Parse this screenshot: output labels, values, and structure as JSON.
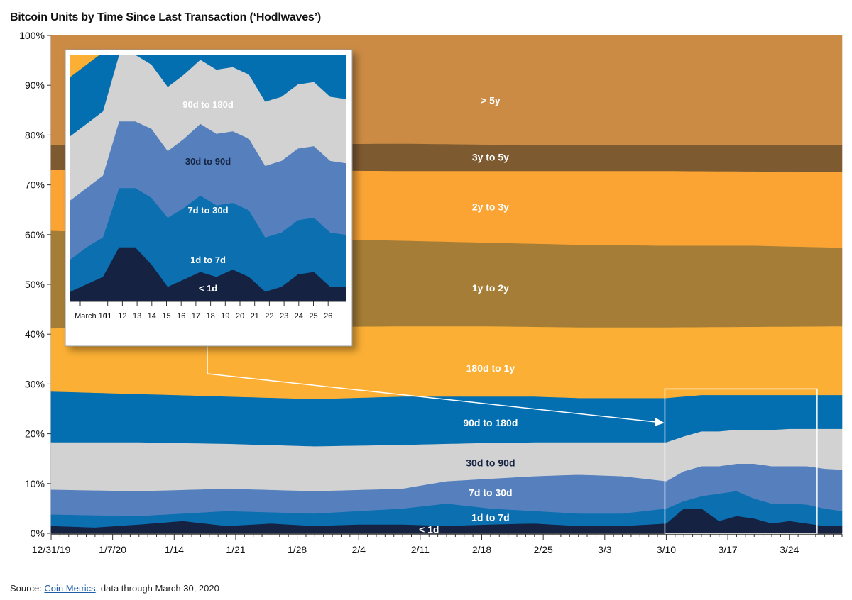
{
  "title": "Bitcoin Units by Time Since Last Transaction (‘Hodlwaves’)",
  "source": {
    "prefix": "Source: ",
    "link_text": "Coin Metrics",
    "suffix": ", data through March 30, 2020"
  },
  "chart_data": [
    {
      "type": "area",
      "stacked": true,
      "title": "Bitcoin Units by Time Since Last Transaction (‘Hodlwaves’)",
      "ylim": [
        0,
        100
      ],
      "y_ticks": [
        "0%",
        "10%",
        "20%",
        "30%",
        "40%",
        "50%",
        "60%",
        "70%",
        "80%",
        "90%",
        "100%"
      ],
      "x_ticks": [
        "12/31/19",
        "1/7/20",
        "1/14",
        "1/21",
        "1/28",
        "2/4",
        "2/11",
        "2/18",
        "2/25",
        "3/3",
        "3/10",
        "3/17",
        "3/24"
      ],
      "x_days": 91,
      "boundaries": [
        {
          "upper_of": "< 1d",
          "x": [
            0,
            5,
            10,
            15,
            20,
            25,
            30,
            35,
            40,
            45,
            50,
            55,
            60,
            65,
            70,
            72,
            74,
            76,
            78,
            80,
            82,
            84,
            86,
            88,
            90
          ],
          "y": [
            1.5,
            1.2,
            1.8,
            2.5,
            1.5,
            2.0,
            1.5,
            1.8,
            1.8,
            1.5,
            1.8,
            2.0,
            1.5,
            1.5,
            2.0,
            5.0,
            5.0,
            2.5,
            3.5,
            3.0,
            2.0,
            2.5,
            2.0,
            1.5,
            1.5
          ]
        },
        {
          "upper_of": "1d to 7d",
          "x": [
            0,
            10,
            20,
            30,
            40,
            45,
            50,
            55,
            60,
            65,
            70,
            72,
            74,
            76,
            78,
            80,
            82,
            84,
            86,
            88,
            90
          ],
          "y": [
            3.8,
            3.5,
            4.5,
            4.0,
            5.0,
            6.0,
            5.0,
            4.5,
            4.0,
            4.0,
            5.0,
            6.5,
            7.5,
            8.0,
            8.5,
            7.0,
            6.0,
            6.0,
            5.8,
            5.0,
            4.5
          ]
        },
        {
          "upper_of": "7d to 30d",
          "x": [
            0,
            10,
            20,
            30,
            40,
            45,
            50,
            55,
            60,
            65,
            70,
            72,
            74,
            76,
            78,
            80,
            82,
            84,
            86,
            88,
            90
          ],
          "y": [
            8.8,
            8.5,
            9.0,
            8.5,
            9.0,
            10.5,
            11.0,
            11.5,
            11.8,
            11.5,
            10.5,
            12.5,
            13.5,
            13.5,
            14.0,
            14.0,
            13.5,
            13.5,
            13.5,
            13.0,
            12.8
          ]
        },
        {
          "upper_of": "30d to 90d",
          "x": [
            0,
            10,
            20,
            30,
            40,
            45,
            50,
            55,
            60,
            65,
            70,
            72,
            74,
            76,
            78,
            80,
            82,
            84,
            86,
            88,
            90
          ],
          "y": [
            18.3,
            18.3,
            18.0,
            17.5,
            17.8,
            18.0,
            18.2,
            18.3,
            18.3,
            18.3,
            18.3,
            19.5,
            20.5,
            20.5,
            20.8,
            20.8,
            20.8,
            21.0,
            21.0,
            21.0,
            21.0
          ]
        },
        {
          "upper_of": "90d to 180d",
          "x": [
            0,
            10,
            20,
            30,
            40,
            45,
            50,
            55,
            60,
            65,
            70,
            72,
            74,
            76,
            78,
            80,
            82,
            84,
            86,
            88,
            90
          ],
          "y": [
            28.5,
            28.0,
            27.5,
            27.0,
            27.5,
            27.5,
            27.5,
            27.5,
            27.2,
            27.2,
            27.2,
            27.5,
            27.8,
            27.8,
            27.8,
            27.8,
            27.8,
            27.8,
            27.8,
            27.8,
            27.8
          ]
        },
        {
          "upper_of": "180d to 1y",
          "x": [
            0,
            10,
            20,
            30,
            40,
            50,
            60,
            70,
            80,
            90
          ],
          "y": [
            41.2,
            41.3,
            41.4,
            41.5,
            41.6,
            41.6,
            41.4,
            41.4,
            41.5,
            41.6
          ]
        },
        {
          "upper_of": "1y to 2y",
          "x": [
            0,
            10,
            20,
            30,
            40,
            50,
            60,
            70,
            80,
            90
          ],
          "y": [
            60.8,
            60.2,
            59.8,
            59.2,
            58.8,
            58.4,
            58.0,
            57.8,
            57.8,
            57.4
          ]
        },
        {
          "upper_of": "2y to 3y",
          "x": [
            0,
            10,
            20,
            30,
            40,
            50,
            60,
            70,
            80,
            90
          ],
          "y": [
            73.0,
            73.0,
            72.9,
            72.9,
            72.8,
            72.8,
            72.8,
            72.8,
            72.7,
            72.6
          ]
        },
        {
          "upper_of": "3y to 5y",
          "x": [
            0,
            10,
            20,
            30,
            40,
            50,
            60,
            70,
            80,
            90
          ],
          "y": [
            78.0,
            78.0,
            78.1,
            78.2,
            78.3,
            78.1,
            78.0,
            78.0,
            78.0,
            78.0
          ]
        }
      ],
      "series": [
        {
          "name": "< 1d",
          "color": "#152241",
          "label_color": "#ffffff",
          "label_x": 43,
          "label_y": 0.8
        },
        {
          "name": "1d to 7d",
          "color": "#0b6fb0",
          "label_color": "#ffffff",
          "label_x": 50,
          "label_y": 3.2
        },
        {
          "name": "7d to 30d",
          "color": "#5580bd",
          "label_color": "#ffffff",
          "label_x": 50,
          "label_y": 8.2
        },
        {
          "name": "30d to 90d",
          "color": "#d2d2d2",
          "label_color": "#152241",
          "label_x": 50,
          "label_y": 14.2
        },
        {
          "name": "90d to 180d",
          "color": "#036eb0",
          "label_color": "#ffffff",
          "label_x": 50,
          "label_y": 22.2
        },
        {
          "name": "180d to 1y",
          "color": "#fbaf34",
          "label_color": "#ffffff",
          "label_x": 50,
          "label_y": 33.2
        },
        {
          "name": "1y to 2y",
          "color": "#a57d36",
          "label_color": "#ffffff",
          "label_x": 50,
          "label_y": 49.3
        },
        {
          "name": "2y to 3y",
          "color": "#fba434",
          "label_color": "#ffffff",
          "label_x": 50,
          "label_y": 65.6
        },
        {
          "name": "3y to 5y",
          "color": "#7e5a31",
          "label_color": "#ffffff",
          "label_x": 50,
          "label_y": 75.6
        },
        {
          "name": "> 5y",
          "color": "#cb8b44",
          "label_color": "#ffffff",
          "label_x": 50,
          "label_y": 87.0
        }
      ],
      "zoom_window": {
        "x_start": 70,
        "x_end": 87,
        "y_low": 0,
        "y_high": 29
      }
    },
    {
      "type": "area",
      "stacked": true,
      "inset": true,
      "x_ticks": [
        "March 10",
        "11",
        "12",
        "13",
        "14",
        "15",
        "16",
        "17",
        "18",
        "19",
        "20",
        "21",
        "22",
        "23",
        "24",
        "25",
        "26"
      ],
      "ylim": [
        0,
        100
      ],
      "boundaries": [
        {
          "upper_of": "< 1d",
          "y": [
            4,
            7,
            10,
            22,
            22,
            15,
            6,
            9,
            12,
            10,
            13,
            10,
            4,
            6,
            11,
            12,
            6,
            6
          ]
        },
        {
          "upper_of": "1d to 7d",
          "y": [
            13,
            15,
            16,
            24,
            24,
            27,
            28,
            29,
            31,
            29,
            27,
            27,
            22,
            22,
            22,
            22,
            22,
            21
          ]
        },
        {
          "upper_of": "7d to 30d",
          "y": [
            24,
            24,
            25,
            27,
            27,
            28,
            27,
            28,
            29,
            29,
            29,
            29,
            29,
            29,
            29,
            29,
            29,
            29
          ]
        },
        {
          "upper_of": "30d to 90d",
          "y": [
            26,
            26,
            26,
            27,
            27,
            26,
            26,
            26,
            26,
            26,
            26,
            26,
            26,
            26,
            26,
            26,
            26,
            26
          ]
        },
        {
          "upper_of": "90d to 180d",
          "y": [
            24,
            24,
            24,
            24,
            24,
            23,
            23,
            23,
            23,
            23,
            23,
            23,
            23,
            23,
            23,
            23,
            23,
            23
          ]
        }
      ],
      "series_labels": [
        {
          "name": "90d to 180d",
          "color": "#036eb0",
          "label_color": "#ffffff"
        },
        {
          "name": "30d to 90d",
          "color": "#d2d2d2",
          "label_color": "#152241"
        },
        {
          "name": "7d to 30d",
          "color": "#5580bd",
          "label_color": "#ffffff"
        },
        {
          "name": "1d to 7d",
          "color": "#0b6fb0",
          "label_color": "#ffffff"
        },
        {
          "name": "< 1d",
          "color": "#152241",
          "label_color": "#ffffff"
        }
      ],
      "top_band_color": "#fbaf34"
    }
  ]
}
